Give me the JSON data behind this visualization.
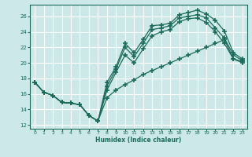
{
  "xlabel": "Humidex (Indice chaleur)",
  "bg_color": "#cde8e8",
  "grid_color": "#b8d8d8",
  "line_color": "#1a6b5a",
  "marker": "+",
  "markersize": 4,
  "linewidth": 0.9,
  "xlim": [
    -0.5,
    23.5
  ],
  "ylim": [
    11.5,
    27.5
  ],
  "xticks": [
    0,
    1,
    2,
    3,
    4,
    5,
    6,
    7,
    8,
    9,
    10,
    11,
    12,
    13,
    14,
    15,
    16,
    17,
    18,
    19,
    20,
    21,
    22,
    23
  ],
  "yticks": [
    12,
    14,
    16,
    18,
    20,
    22,
    24,
    26
  ],
  "line1_x": [
    0,
    1,
    2,
    3,
    4,
    5,
    6,
    7,
    8,
    9,
    10,
    11,
    12,
    13,
    14,
    15,
    16,
    17,
    18,
    19,
    20,
    21,
    22,
    23
  ],
  "line1_y": [
    17.5,
    16.2,
    15.8,
    14.9,
    14.8,
    14.6,
    13.2,
    12.5,
    17.5,
    19.5,
    22.5,
    21.3,
    23.0,
    24.8,
    24.9,
    25.1,
    26.2,
    26.5,
    26.8,
    26.3,
    25.5,
    24.1,
    21.3,
    20.5
  ],
  "line2_x": [
    0,
    1,
    2,
    3,
    4,
    5,
    6,
    7,
    8,
    9,
    10,
    11,
    12,
    13,
    14,
    15,
    16,
    17,
    18,
    19,
    20,
    21,
    22,
    23
  ],
  "line2_y": [
    17.5,
    16.2,
    15.8,
    14.9,
    14.8,
    14.6,
    13.2,
    12.5,
    17.0,
    19.2,
    22.0,
    20.8,
    22.5,
    24.3,
    24.5,
    24.8,
    25.8,
    26.0,
    26.2,
    25.8,
    24.5,
    23.2,
    21.0,
    20.3
  ],
  "line3_x": [
    0,
    1,
    2,
    3,
    4,
    5,
    6,
    7,
    8,
    9,
    10,
    11,
    12,
    13,
    14,
    15,
    16,
    17,
    18,
    19,
    20,
    21,
    22,
    23
  ],
  "line3_y": [
    17.5,
    16.2,
    15.8,
    14.9,
    14.8,
    14.6,
    13.2,
    12.5,
    16.5,
    18.8,
    21.0,
    20.0,
    21.8,
    23.5,
    24.0,
    24.3,
    25.3,
    25.7,
    25.8,
    25.2,
    24.0,
    22.5,
    20.5,
    20.0
  ],
  "line4_x": [
    0,
    1,
    2,
    3,
    4,
    5,
    6,
    7,
    8,
    9,
    10,
    11,
    12,
    13,
    14,
    15,
    16,
    17,
    18,
    19,
    20,
    21,
    22,
    23
  ],
  "line4_y": [
    17.5,
    16.2,
    15.8,
    14.9,
    14.8,
    14.6,
    13.2,
    12.5,
    15.5,
    16.5,
    17.2,
    17.8,
    18.5,
    19.0,
    19.5,
    20.0,
    20.5,
    21.0,
    21.5,
    22.0,
    22.5,
    23.0,
    20.5,
    20.2
  ]
}
